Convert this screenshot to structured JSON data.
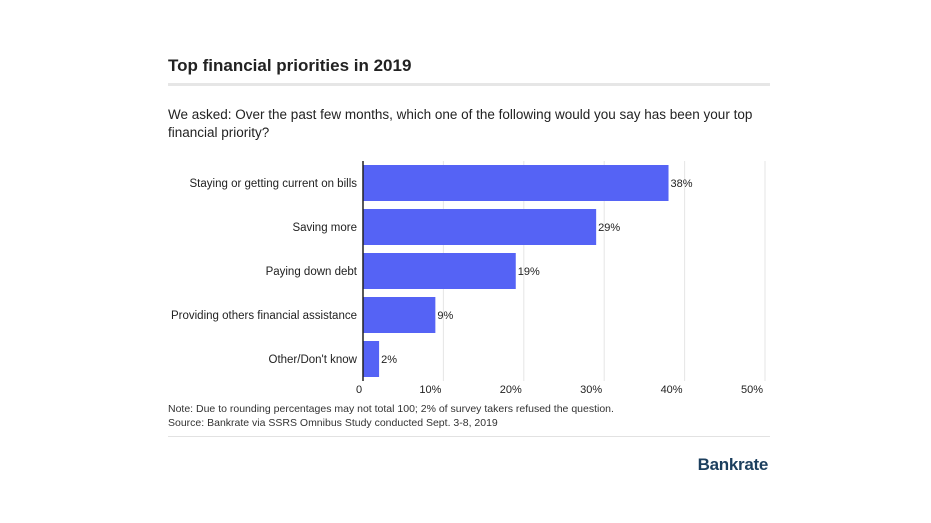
{
  "title": "Top financial priorities in 2019",
  "question": "We asked: Over the past few months, which one of the following would you say has been your top financial priority?",
  "note": "Note: Due to rounding percentages may not total 100; 2% of survey takers refused the question.",
  "source": "Source: Bankrate via SSRS Omnibus Study conducted Sept. 3-8, 2019",
  "logo_text": "Bankrate",
  "colors": {
    "bar": "#5563f5",
    "axis": "#222222",
    "grid": "#e5e5e5",
    "rule": "#e6e6e6",
    "logo": "#1c3f5e"
  },
  "chart_data": {
    "type": "bar",
    "orientation": "horizontal",
    "categories": [
      "Staying or getting current on bills",
      "Saving more",
      "Paying down debt",
      "Providing others financial assistance",
      "Other/Don't know"
    ],
    "values": [
      38,
      29,
      19,
      9,
      2
    ],
    "value_labels": [
      "38%",
      "29%",
      "19%",
      "9%",
      "2%"
    ],
    "xlim": [
      0,
      50
    ],
    "xticks": [
      0,
      10,
      20,
      30,
      40,
      50
    ],
    "xtick_labels": [
      "0",
      "10%",
      "20%",
      "30%",
      "40%",
      "50%"
    ],
    "grid": true
  }
}
